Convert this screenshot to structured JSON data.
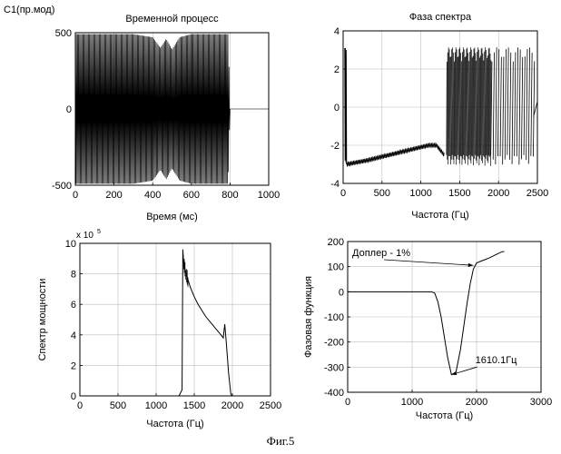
{
  "figure": {
    "caption": "Фиг.5",
    "corner_label": "С1(пр.мод)"
  },
  "chart_data": [
    {
      "id": "time_process",
      "type": "line",
      "title": "Временной процесс",
      "xlabel": "Время (мс)",
      "ylabel": "",
      "xlim": [
        0,
        1000
      ],
      "ylim": [
        -500,
        500
      ],
      "xticks": [
        0,
        200,
        400,
        600,
        800,
        1000
      ],
      "yticks": [
        -500,
        0,
        500
      ],
      "grid": true,
      "series": [
        {
          "description_free_values": true,
          "style": "dense_oscillation",
          "x_range": [
            0,
            800
          ],
          "amplitude_envelope": {
            "x": [
              0,
              50,
              150,
              300,
              400,
              440,
              470,
              500,
              540,
              600,
              700,
              790,
              800
            ],
            "upper": [
              490,
              490,
              490,
              490,
              470,
              400,
              460,
              390,
              470,
              490,
              490,
              490,
              0
            ],
            "lower": [
              -490,
              -490,
              -490,
              -490,
              -470,
              -400,
              -460,
              -390,
              -470,
              -490,
              -490,
              -490,
              0
            ]
          }
        }
      ]
    },
    {
      "id": "spectrum_phase",
      "type": "line",
      "title": "Фаза спектра",
      "xlabel": "Частота (Гц)",
      "ylabel": "",
      "xlim": [
        0,
        2500
      ],
      "ylim": [
        -4,
        4
      ],
      "xticks": [
        0,
        500,
        1000,
        1500,
        2000,
        2500
      ],
      "yticks": [
        -4,
        -2,
        0,
        2,
        4
      ],
      "grid": true,
      "series": [
        {
          "segments": [
            {
              "style": "spike",
              "x": [
                20,
                25,
                30,
                35,
                40,
                45
              ],
              "y": [
                3.1,
                -2.8,
                3.1,
                -2.9,
                3.0,
                -3.0
              ]
            },
            {
              "style": "ripple_trend",
              "x": [
                40,
                300,
                600,
                900,
                1100,
                1200,
                1300
              ],
              "y": [
                -3.0,
                -2.8,
                -2.5,
                -2.2,
                -2.0,
                -2.0,
                -2.5
              ],
              "ripple": 0.12
            },
            {
              "style": "dense_wrap",
              "x_range": [
                1330,
                1900
              ],
              "y_range": [
                -3.14,
                3.14
              ]
            },
            {
              "style": "sparse_wrap",
              "x_range": [
                1900,
                2450
              ],
              "y_range": [
                -3.14,
                3.14
              ]
            },
            {
              "style": "tail",
              "x": [
                2450,
                2500
              ],
              "y": [
                -0.5,
                0.3
              ]
            }
          ]
        }
      ]
    },
    {
      "id": "power_spectrum",
      "type": "line",
      "title": "",
      "xlabel": "Частота (Гц)",
      "ylabel": "Спектр мощности",
      "y_multiplier_label": "x 10",
      "y_multiplier_exp": "5",
      "xlim": [
        0,
        2500
      ],
      "ylim": [
        0,
        10
      ],
      "xticks": [
        0,
        500,
        1000,
        1500,
        2000,
        2500
      ],
      "yticks": [
        0,
        2,
        4,
        6,
        8,
        10
      ],
      "grid": true,
      "series": [
        {
          "x": [
            0,
            1300,
            1340,
            1350,
            1360,
            1380,
            1400,
            1450,
            1500,
            1550,
            1600,
            1650,
            1700,
            1750,
            1800,
            1850,
            1880,
            1900,
            1920,
            1950,
            1980,
            2000,
            2500
          ],
          "y": [
            0,
            0,
            0.4,
            9.6,
            8.8,
            8.3,
            7.9,
            7.1,
            6.5,
            6.0,
            5.6,
            5.2,
            4.9,
            4.6,
            4.3,
            4.0,
            3.8,
            4.7,
            3.5,
            1.5,
            0.1,
            0,
            0
          ],
          "dense_region": [
            1360,
            1420
          ]
        }
      ]
    },
    {
      "id": "phase_function",
      "type": "line",
      "title": "",
      "xlabel": "Частота (Гц)",
      "ylabel": "Фазовая функция",
      "xlim": [
        0,
        3000
      ],
      "ylim": [
        -400,
        200
      ],
      "xticks": [
        0,
        1000,
        2000,
        3000
      ],
      "yticks": [
        -400,
        -300,
        -200,
        -100,
        0,
        100,
        200
      ],
      "grid": true,
      "series": [
        {
          "x": [
            0,
            1300,
            1350,
            1400,
            1450,
            1500,
            1550,
            1610,
            1680,
            1750,
            1800,
            1850,
            1900,
            1950,
            2000,
            2100,
            2200,
            2300,
            2400,
            2430
          ],
          "y": [
            0,
            0,
            -5,
            -40,
            -100,
            -180,
            -260,
            -330,
            -320,
            -230,
            -140,
            -50,
            30,
            90,
            115,
            125,
            135,
            148,
            160,
            160
          ]
        }
      ],
      "annotations": [
        {
          "text": "Доплер - 1%",
          "arrow_to": [
            1950,
            105
          ],
          "from": [
            1700,
            135
          ]
        },
        {
          "text": "1610.1Гц",
          "arrow_to": [
            1610,
            -330
          ],
          "from": [
            1980,
            -285
          ]
        }
      ]
    }
  ]
}
